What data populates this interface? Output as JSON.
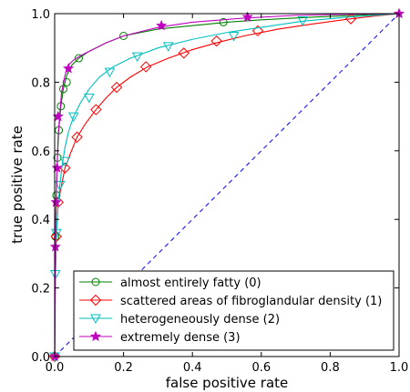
{
  "chart_data": {
    "type": "line",
    "title": "",
    "xlabel": "false positive rate",
    "ylabel": "true positive rate",
    "xlim": [
      0,
      1
    ],
    "ylim": [
      0,
      1
    ],
    "xticks": [
      "0.0",
      "0.2",
      "0.4",
      "0.6",
      "0.8",
      "1.0"
    ],
    "yticks": [
      "0.0",
      "0.2",
      "0.4",
      "0.6",
      "0.8",
      "1.0"
    ],
    "grid": false,
    "legend_position": "lower-right",
    "reference_line": {
      "style": "dashed",
      "color": "#0000ff",
      "x": [
        0,
        1
      ],
      "y": [
        0,
        1
      ]
    },
    "series": [
      {
        "name": "almost entirely fatty (0)",
        "color": "#008000",
        "marker": "circle",
        "x": [
          0.0,
          0.002,
          0.005,
          0.008,
          0.012,
          0.018,
          0.025,
          0.035,
          0.05,
          0.07,
          0.1,
          0.15,
          0.2,
          0.3,
          0.4,
          0.5,
          0.6,
          0.75,
          0.9,
          1.0
        ],
        "y": [
          0.0,
          0.35,
          0.47,
          0.58,
          0.66,
          0.73,
          0.78,
          0.82,
          0.85,
          0.87,
          0.89,
          0.915,
          0.935,
          0.955,
          0.965,
          0.975,
          0.982,
          0.99,
          0.996,
          1.0
        ],
        "marker_x": [
          0.0,
          0.002,
          0.005,
          0.008,
          0.012,
          0.018,
          0.025,
          0.035,
          0.07,
          0.2,
          0.49
        ],
        "marker_y": [
          0.0,
          0.35,
          0.47,
          0.58,
          0.66,
          0.73,
          0.78,
          0.8,
          0.87,
          0.935,
          0.975
        ]
      },
      {
        "name": "scattered areas of fibroglandular density (1)",
        "color": "#ff0000",
        "marker": "diamond",
        "x": [
          0.0,
          0.002,
          0.005,
          0.01,
          0.02,
          0.03,
          0.045,
          0.065,
          0.09,
          0.12,
          0.15,
          0.18,
          0.22,
          0.27,
          0.33,
          0.4,
          0.47,
          0.55,
          0.65,
          0.75,
          0.86,
          0.93,
          1.0
        ],
        "y": [
          0.0,
          0.22,
          0.35,
          0.45,
          0.5,
          0.55,
          0.59,
          0.64,
          0.68,
          0.72,
          0.755,
          0.785,
          0.815,
          0.845,
          0.87,
          0.895,
          0.915,
          0.935,
          0.955,
          0.97,
          0.985,
          0.993,
          1.0
        ],
        "marker_x": [
          0.0,
          0.005,
          0.01,
          0.03,
          0.065,
          0.12,
          0.18,
          0.265,
          0.375,
          0.47,
          0.59,
          0.86
        ],
        "marker_y": [
          0.0,
          0.35,
          0.45,
          0.55,
          0.64,
          0.72,
          0.785,
          0.845,
          0.885,
          0.92,
          0.95,
          0.985
        ]
      },
      {
        "name": "heterogeneously dense (2)",
        "color": "#00bfbf",
        "marker": "triangle-down",
        "x": [
          0.0,
          0.002,
          0.005,
          0.01,
          0.015,
          0.022,
          0.03,
          0.04,
          0.055,
          0.075,
          0.1,
          0.13,
          0.17,
          0.22,
          0.3,
          0.4,
          0.5,
          0.6,
          0.72,
          0.85,
          1.0
        ],
        "y": [
          0.0,
          0.24,
          0.36,
          0.44,
          0.5,
          0.56,
          0.61,
          0.655,
          0.7,
          0.74,
          0.78,
          0.815,
          0.845,
          0.87,
          0.9,
          0.925,
          0.945,
          0.96,
          0.978,
          0.99,
          1.0
        ],
        "marker_x": [
          0.0,
          0.002,
          0.005,
          0.015,
          0.03,
          0.055,
          0.1,
          0.16,
          0.24,
          0.33,
          0.52,
          0.72
        ],
        "marker_y": [
          0.0,
          0.24,
          0.36,
          0.5,
          0.57,
          0.7,
          0.755,
          0.83,
          0.875,
          0.905,
          0.935,
          0.98
        ]
      },
      {
        "name": "extremely dense (3)",
        "color": "#bf00bf",
        "marker": "star",
        "x": [
          0.0,
          0.002,
          0.004,
          0.007,
          0.01,
          0.015,
          0.02,
          0.03,
          0.04,
          0.055,
          0.08,
          0.11,
          0.15,
          0.2,
          0.3,
          0.4,
          0.55,
          0.7,
          0.85,
          1.0
        ],
        "y": [
          0.0,
          0.32,
          0.45,
          0.55,
          0.64,
          0.71,
          0.77,
          0.82,
          0.85,
          0.865,
          0.88,
          0.895,
          0.915,
          0.935,
          0.96,
          0.975,
          0.987,
          0.995,
          0.998,
          1.0
        ],
        "marker_x": [
          0.0,
          0.002,
          0.004,
          0.007,
          0.01,
          0.04,
          0.31,
          0.56,
          1.0
        ],
        "marker_y": [
          0.0,
          0.32,
          0.45,
          0.55,
          0.7,
          0.84,
          0.965,
          0.99,
          1.0
        ]
      }
    ]
  }
}
